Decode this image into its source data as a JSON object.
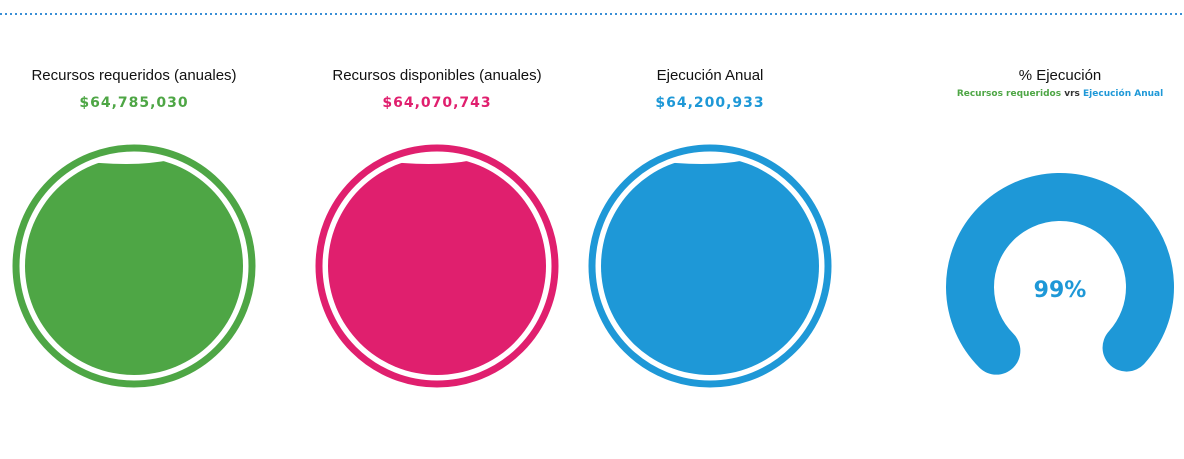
{
  "cards": [
    {
      "title": "Recursos requeridos (anuales)",
      "value": "$64,785,030"
    },
    {
      "title": "Recursos disponibles (anuales)",
      "value": "$64,070,743"
    },
    {
      "title": "Ejecución Anual",
      "value": "$64,200,933"
    }
  ],
  "gauge": {
    "title": "% Ejecución",
    "subtitle": [
      "Recursos requeridos",
      "vrs",
      "Ejecución Anual"
    ],
    "value": 99,
    "label": "99%"
  }
}
